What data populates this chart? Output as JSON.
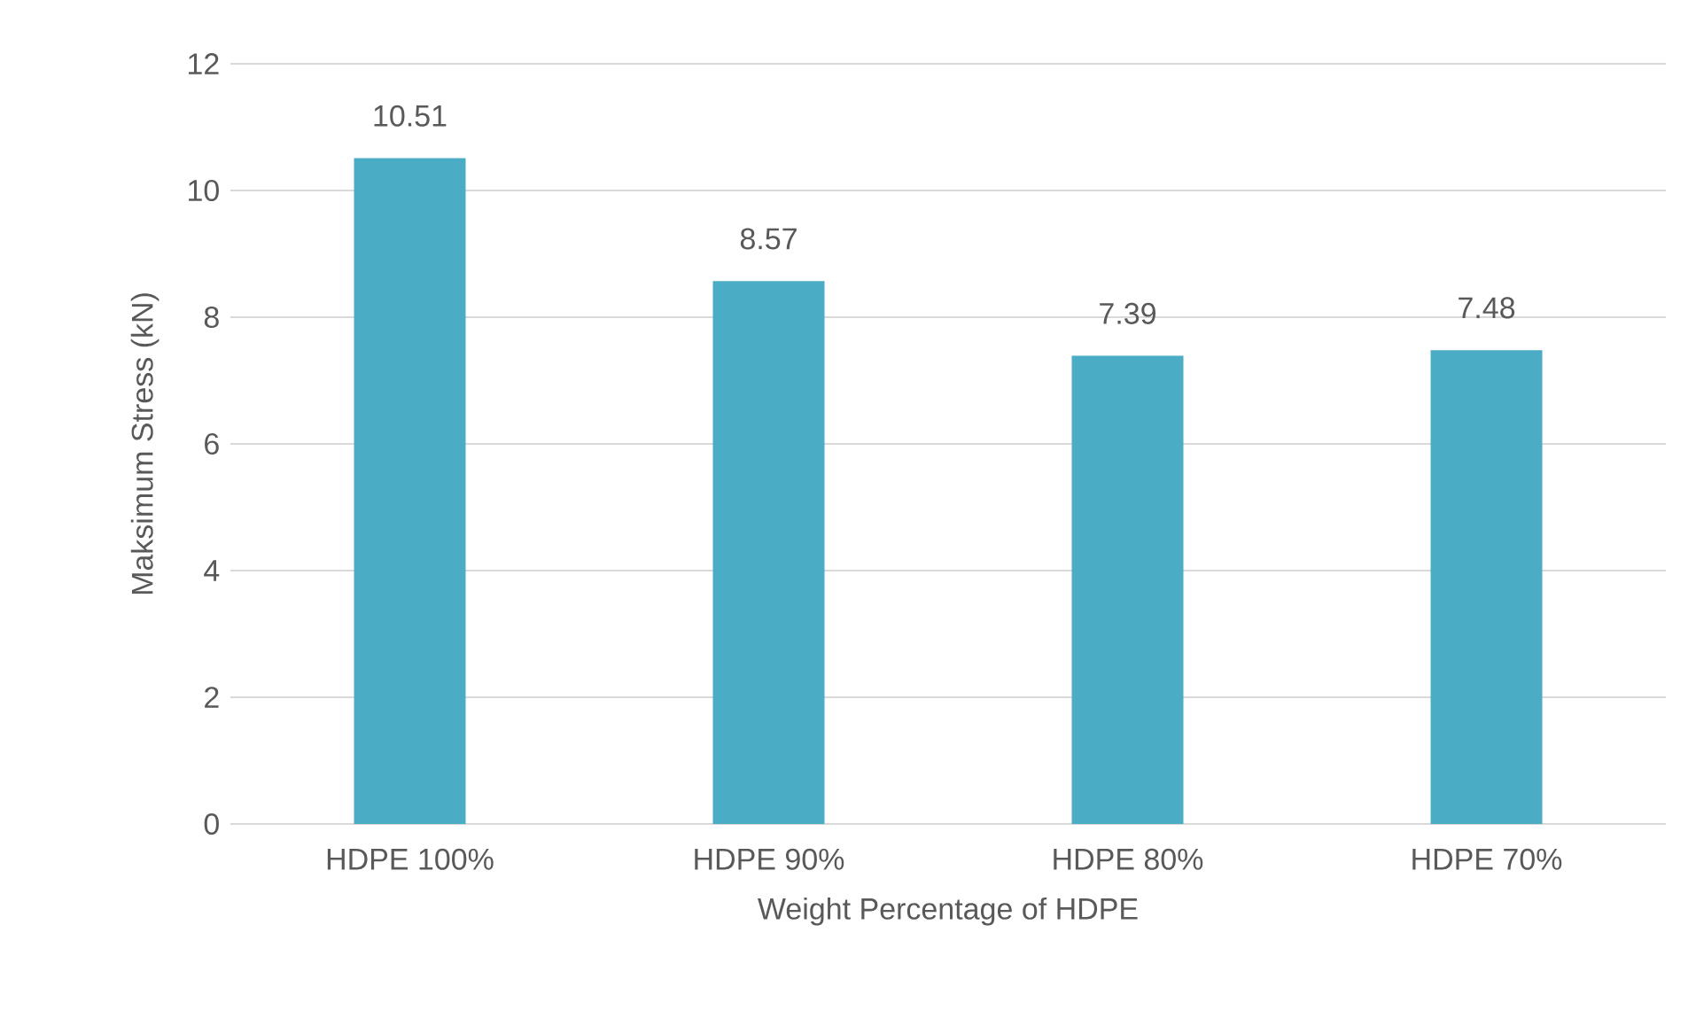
{
  "chart_data": {
    "type": "bar",
    "xlabel": "Weight Percentage of HDPE",
    "ylabel": "Maksimum Stress (kN)",
    "categories": [
      "HDPE 100%",
      "HDPE 90%",
      "HDPE 80%",
      "HDPE 70%"
    ],
    "values": [
      10.51,
      8.57,
      7.39,
      7.48
    ],
    "color": "#4bacc6",
    "ylim": [
      0,
      12
    ],
    "yticks": [
      0,
      2,
      4,
      6,
      8,
      10,
      12
    ],
    "grid": "y",
    "data_labels": true
  }
}
